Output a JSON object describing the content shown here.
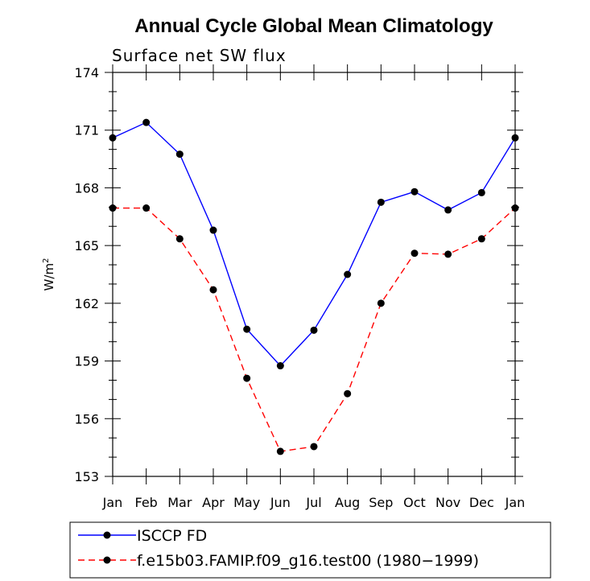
{
  "chart_data": {
    "type": "line",
    "title": "Annual Cycle Global Mean Climatology",
    "subtitle": "Surface net SW flux",
    "ylabel": "W/m",
    "ylabel_superscript": "2",
    "xlabel": "",
    "categories": [
      "Jan",
      "Feb",
      "Mar",
      "Apr",
      "May",
      "Jun",
      "Jul",
      "Aug",
      "Sep",
      "Oct",
      "Nov",
      "Dec",
      "Jan"
    ],
    "ylim": [
      153,
      174
    ],
    "yticks": [
      153,
      156,
      159,
      162,
      165,
      168,
      171,
      174
    ],
    "grid": false,
    "legend_position": "bottom",
    "series": [
      {
        "name": "ISCCP FD",
        "color": "#0000ff",
        "line_style": "solid",
        "marker": "circle",
        "values": [
          170.6,
          171.4,
          169.75,
          165.8,
          160.65,
          158.75,
          160.6,
          163.5,
          167.25,
          167.8,
          166.85,
          167.75,
          170.6
        ]
      },
      {
        "name": "f.e15b03.FAMIP.f09_g16.test00 (1980−1999)",
        "color": "#ff0000",
        "line_style": "dashed",
        "marker": "circle",
        "values": [
          166.95,
          166.95,
          165.35,
          162.7,
          158.1,
          154.3,
          154.55,
          157.3,
          162.0,
          164.6,
          164.55,
          165.35,
          166.95
        ]
      }
    ]
  }
}
